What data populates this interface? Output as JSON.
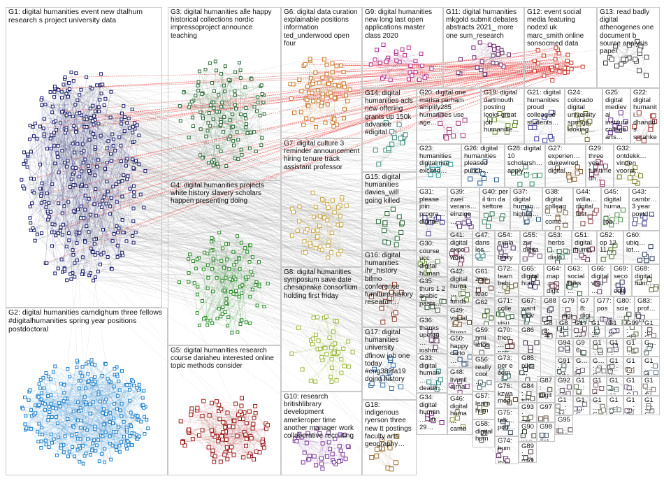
{
  "groups": [
    {
      "id": "G1",
      "label": "G1: digital humanities event new dtalhum research s project university data",
      "color": "#1b1f6b"
    },
    {
      "id": "G2",
      "label": "G2: digital humanities camdighum three fellows #digitalhumanities spring year positions postdoctoral",
      "color": "#1f7fc8"
    },
    {
      "id": "G3",
      "label": "G3: digital humanities alle happy historical collections nordic impressoproject announce teaching",
      "color": "#2e6b3a"
    },
    {
      "id": "G4",
      "label": "G4: digital humanities projects white history slavery scholars happen presenting doing",
      "color": "#2c8a2c"
    },
    {
      "id": "G5",
      "label": "G5: digital humanities research course dariaheu interested online topic methods consider",
      "color": "#9a1c1c"
    },
    {
      "id": "G6",
      "label": "G6: digital data curation explainable positions information ted_underwood open four",
      "color": "#c9782a"
    },
    {
      "id": "G7",
      "label": "G7: digital culture 3 reminder announcement hiring tenure track assistant professor",
      "color": "#c9a84a"
    },
    {
      "id": "G8",
      "label": "G8: digital humanities symposium save date chesapeake consortium holding first friday",
      "color": "#9ab83a"
    },
    {
      "id": "G9",
      "label": "G9: digital humanities new long last open applications master class 2020",
      "color": "#b02a8a"
    },
    {
      "id": "G10",
      "label": "G10: research britishlibrary development amelieroper time another manager work collaborative recruiting",
      "color": "#7a3a9a"
    },
    {
      "id": "G11",
      "label": "G11: digital humanities mkgold submit debates abstracts 2021_ more one sum_research",
      "color": "#6a2a6a"
    },
    {
      "id": "G12",
      "label": "G12: event social media featuring nodexl uk marc_smith online sonsocmed data",
      "color": "#c83a2a"
    },
    {
      "id": "G13",
      "label": "G13: read badly digital athenogenes one document b source analysis paper",
      "color": "#444444"
    },
    {
      "id": "G14",
      "label": "G14: digital humanities acls new offering grants up 150k advance #digital",
      "color": "#3a8a7a"
    },
    {
      "id": "G15",
      "label": "G15: digital humanities davies_will going killed",
      "color": "#2a6a3a"
    },
    {
      "id": "G16",
      "label": "G16: digital humanities ihr_history bifmo conference furniture history research…",
      "color": "#8a3a2a"
    },
    {
      "id": "G17",
      "label": "G17: digital humanities university dfinow job one today #eng382fa19 doing history",
      "color": "#3a6a9a"
    },
    {
      "id": "G18",
      "label": "G18: indigenous ryerson three new tt postings faculty arts geography…",
      "color": "#9a6a2a"
    },
    {
      "id": "G19",
      "label": "G19: digital dartmouth posting looks great job humanitie…",
      "color": "#6a8a2a"
    },
    {
      "id": "G20",
      "label": "G20: digital one marisa parham amplify285 humanities use age…",
      "color": "#a03a7a"
    },
    {
      "id": "G21",
      "label": "G21: digital humanities proud colleague students…",
      "color": "#3a3a9a"
    },
    {
      "id": "G22",
      "label": "G22: digital humaniti… dhandds sarahket… latest…",
      "color": "#9a2a2a"
    },
    {
      "id": "G23",
      "label": "G23: humanities digital rise excited…",
      "color": "#2a9a9a"
    },
    {
      "id": "G24",
      "label": "G24: colorado digital university springs looking…",
      "color": "#6a6a2a"
    },
    {
      "id": "G25",
      "label": "G25: digital medieval institute college arts…",
      "color": "#5a2a8a"
    },
    {
      "id": "G26",
      "label": "G26: digital humanities pleased punch…",
      "color": "#2a5a8a"
    },
    {
      "id": "G27",
      "label": "G27: experien… dukewired digital…",
      "color": "#8a5a2a"
    },
    {
      "id": "G28",
      "label": "G28: digital 10 scholarsh… apply…",
      "color": "#2a8a5a"
    },
    {
      "id": "G29",
      "label": "G29: three year full time dh…",
      "color": "#8a2a5a"
    },
    {
      "id": "G30",
      "label": "G30: course ucc digital human…",
      "color": "#5a8a2a"
    },
    {
      "id": "G31",
      "label": "G31: please join progra… digital…",
      "color": "#2a2a7a"
    },
    {
      "id": "G32",
      "label": "G32: ontdekk… vinden vooral…",
      "color": "#7a7a2a"
    },
    {
      "id": "G33",
      "label": "G33: digital human… deadli…",
      "color": "#2a7a7a"
    },
    {
      "id": "G34",
      "label": "G34: digital human… 10 29…",
      "color": "#7a2a7a"
    },
    {
      "id": "G35",
      "label": "G35: thurs 1 2 arabic pasts…",
      "color": "#2a4a2a"
    },
    {
      "id": "G36",
      "label": "G36: thanks upeige… joshm… digital…",
      "color": "#4a2a4a"
    },
    {
      "id": "G37",
      "label": "G37: digital human… highlig…",
      "color": "#3a5a7a"
    },
    {
      "id": "G38",
      "label": "G38: digital colleag… come…",
      "color": "#7a5a3a"
    },
    {
      "id": "G39",
      "label": "G39: zwei verans… einzige…",
      "color": "#5a3a7a"
    },
    {
      "id": "G40",
      "label": "G40: per il tim da settore",
      "color": "#3a7a5a"
    },
    {
      "id": "G41",
      "label": "G41: digital expo work…",
      "color": "#7a3a5a"
    },
    {
      "id": "G42",
      "label": "G42: digital huma… funds…",
      "color": "#5a7a3a"
    },
    {
      "id": "G43",
      "label": "G43: cambr… 3 year postd…",
      "color": "#4a4a8a"
    },
    {
      "id": "G44",
      "label": "G44: willia… digital first…",
      "color": "#8a4a4a"
    },
    {
      "id": "G45",
      "label": "G45: digital huma… job…",
      "color": "#4a8a4a"
    },
    {
      "id": "G46",
      "label": "G46: digital huma… camb…",
      "color": "#8a8a4a"
    },
    {
      "id": "G47",
      "label": "G47: dans les…",
      "color": "#4a8a8a"
    },
    {
      "id": "G48",
      "label": "G48: livunil ajrhai arane…",
      "color": "#8a4a8a"
    },
    {
      "id": "G49",
      "label": "G49: visual… huma… data…",
      "color": "#6a4a2a"
    },
    {
      "id": "G50",
      "label": "G50: happy carto… dh20…",
      "color": "#2a4a6a"
    },
    {
      "id": "G51",
      "label": "G51: digital huma…",
      "color": "#6a2a4a"
    },
    {
      "id": "G52",
      "label": "G52: op 12 11…",
      "color": "#4a6a2a"
    },
    {
      "id": "G53",
      "label": "G53: herbs… dialo…",
      "color": "#2a6a4a"
    },
    {
      "id": "G54",
      "label": "G54: expla… berry…",
      "color": "#4a2a6a"
    },
    {
      "id": "G55",
      "label": "G55: zur digita…",
      "color": "#6a4a6a"
    },
    {
      "id": "G56",
      "label": "G56: really cool…",
      "color": "#4a6a6a"
    },
    {
      "id": "G57",
      "label": "G57: learn hum…",
      "color": "#6a6a4a"
    },
    {
      "id": "G58",
      "label": "G58: digital hum…",
      "color": "#3a3a3a"
    },
    {
      "id": "G59",
      "label": "G59: nmi letos…",
      "color": "#5a5a5a"
    },
    {
      "id": "G60",
      "label": "G60: ubiq… lot…",
      "color": "#2a3a5a"
    },
    {
      "id": "G61",
      "label": "G61: zom… teac…",
      "color": "#5a3a2a"
    },
    {
      "id": "G62",
      "label": "G62",
      "color": "#3a5a2a"
    },
    {
      "id": "G63",
      "label": "G63: social folks…",
      "color": "#2a5a3a"
    },
    {
      "id": "G64",
      "label": "G64: map… digit…",
      "color": "#5a2a3a"
    },
    {
      "id": "G65",
      "label": "G65: digital hum…",
      "color": "#3a2a5a"
    },
    {
      "id": "G66",
      "label": "G66: digital visu…",
      "color": "#5a3a5a"
    },
    {
      "id": "G67",
      "label": "G67: want mov…",
      "color": "#3a5a5a"
    },
    {
      "id": "G68",
      "label": "G68: digital hum…",
      "color": "#5a5a3a"
    },
    {
      "id": "G69",
      "label": "G69: seco… editi…",
      "color": "#2a2a5a"
    },
    {
      "id": "G70",
      "label": "G70: frien… notr…",
      "color": "#5a2a2a"
    },
    {
      "id": "G71",
      "label": "G71: colle… visu…",
      "color": "#2a5a2a"
    },
    {
      "id": "G72",
      "label": "G72: team behi…",
      "color": "#5a5a2a"
    },
    {
      "id": "G73",
      "label": "G73: per e com…",
      "color": "#2a5a5a"
    },
    {
      "id": "G74",
      "label": "G74: hum… ihav…",
      "color": "#5a2a5a"
    },
    {
      "id": "G75",
      "label": "G75: talk… pod…",
      "color": "#3a4a5a"
    },
    {
      "id": "G76",
      "label": "G76: kzwa meg…",
      "color": "#5a4a3a"
    },
    {
      "id": "G77",
      "label": "G77: pos…",
      "color": "#4a3a5a"
    },
    {
      "id": "G78",
      "label": "G78: digit…",
      "color": "#3a5a4a"
    },
    {
      "id": "G79",
      "label": "G79: digi…",
      "color": "#5a3a4a"
    },
    {
      "id": "G80",
      "label": "G80: scie…",
      "color": "#4a5a3a"
    },
    {
      "id": "G81",
      "label": "G81: kn…",
      "color": "#3a4a4a"
    },
    {
      "id": "G82",
      "label": "G82: デ…",
      "color": "#4a3a3a"
    },
    {
      "id": "G83",
      "label": "G83: prof…",
      "color": "#3a3a4a"
    },
    {
      "id": "G84",
      "label": "G84: trü…",
      "color": "#4a4a3a"
    },
    {
      "id": "G85",
      "label": "G85: piks…",
      "color": "#2a3a3a"
    },
    {
      "id": "G86",
      "label": "G86",
      "color": "#3a2a3a"
    },
    {
      "id": "G87",
      "label": "G87: digit…",
      "color": "#3a3a2a"
    },
    {
      "id": "G88",
      "label": "G88",
      "color": "#2a2a3a"
    },
    {
      "id": "G89",
      "label": "G89: nadi…",
      "color": "#3a2a2a"
    },
    {
      "id": "G90",
      "label": "G90: wur…",
      "color": "#2a3a2a"
    },
    {
      "id": "G91",
      "label": "G91: adv…",
      "color": "#4a5a5a"
    },
    {
      "id": "G92",
      "label": "G92: nov…",
      "color": "#5a4a5a"
    },
    {
      "id": "G93",
      "label": "G93: rye…",
      "color": "#5a5a4a"
    },
    {
      "id": "G94",
      "label": "G94: jos…",
      "color": "#4a4a5a"
    },
    {
      "id": "G95",
      "label": "G95: ass…",
      "color": "#5a4a4a"
    },
    {
      "id": "G96",
      "label": "G96: et",
      "color": "#4a5a4a"
    },
    {
      "id": "G97",
      "label": "G97",
      "color": "#6a5a4a"
    },
    {
      "id": "G98",
      "label": "G98: #nt…",
      "color": "#4a5a6a"
    },
    {
      "id": "G99",
      "label": "G99: dig…",
      "color": "#5a6a4a"
    },
    {
      "id": "G100",
      "label": "G1…: dh…",
      "color": "#6a4a5a"
    },
    {
      "id": "G101",
      "label": "G1…: ex…",
      "color": "#4a6a5a"
    },
    {
      "id": "G102",
      "label": "G1…: G…",
      "color": "#5a4a6a"
    },
    {
      "id": "G103",
      "label": "G1…: G…",
      "color": "#6a5a5a"
    },
    {
      "id": "G104",
      "label": "G1…: G…",
      "color": "#5a6a5a"
    },
    {
      "id": "G105",
      "label": "G1…: G…",
      "color": "#5a5a6a"
    },
    {
      "id": "G106",
      "label": "G1…: G…",
      "color": "#6a6a5a"
    },
    {
      "id": "G107",
      "label": "G…: w…",
      "color": "#5a6a6a"
    },
    {
      "id": "G108",
      "label": "G…: G…",
      "color": "#6a5a6a"
    },
    {
      "id": "G109",
      "label": "G…: G…",
      "color": "#6a6a6a"
    },
    {
      "id": "G110",
      "label": "G1…: w…",
      "color": "#4a4a4a"
    },
    {
      "id": "G111",
      "label": "G1…: a…",
      "color": "#7a6a5a"
    },
    {
      "id": "G112",
      "label": "G1…: di…",
      "color": "#5a6a7a"
    },
    {
      "id": "G113",
      "label": "G1…: bi…",
      "color": "#6a7a5a"
    },
    {
      "id": "G114",
      "label": "G1…: G…",
      "color": "#7a5a6a"
    },
    {
      "id": "G115",
      "label": "G1…: cs…",
      "color": "#5a7a6a"
    },
    {
      "id": "G116",
      "label": "G1…: G…",
      "color": "#6a5a7a"
    },
    {
      "id": "G117",
      "label": "G1…: G…",
      "color": "#7a6a6a"
    },
    {
      "id": "G118",
      "label": "G1…: w…",
      "color": "#6a7a6a"
    },
    {
      "id": "G119",
      "label": "G1…: G…",
      "color": "#6a6a7a"
    },
    {
      "id": "G120",
      "label": "G1…: G…",
      "color": "#7a7a6a"
    },
    {
      "id": "G121",
      "label": "G1…: ri…",
      "color": "#6a7a7a"
    },
    {
      "id": "G122",
      "label": "G1…: G…",
      "color": "#7a6a7a"
    },
    {
      "id": "G123",
      "label": "G1…: G…",
      "color": "#707070"
    }
  ]
}
